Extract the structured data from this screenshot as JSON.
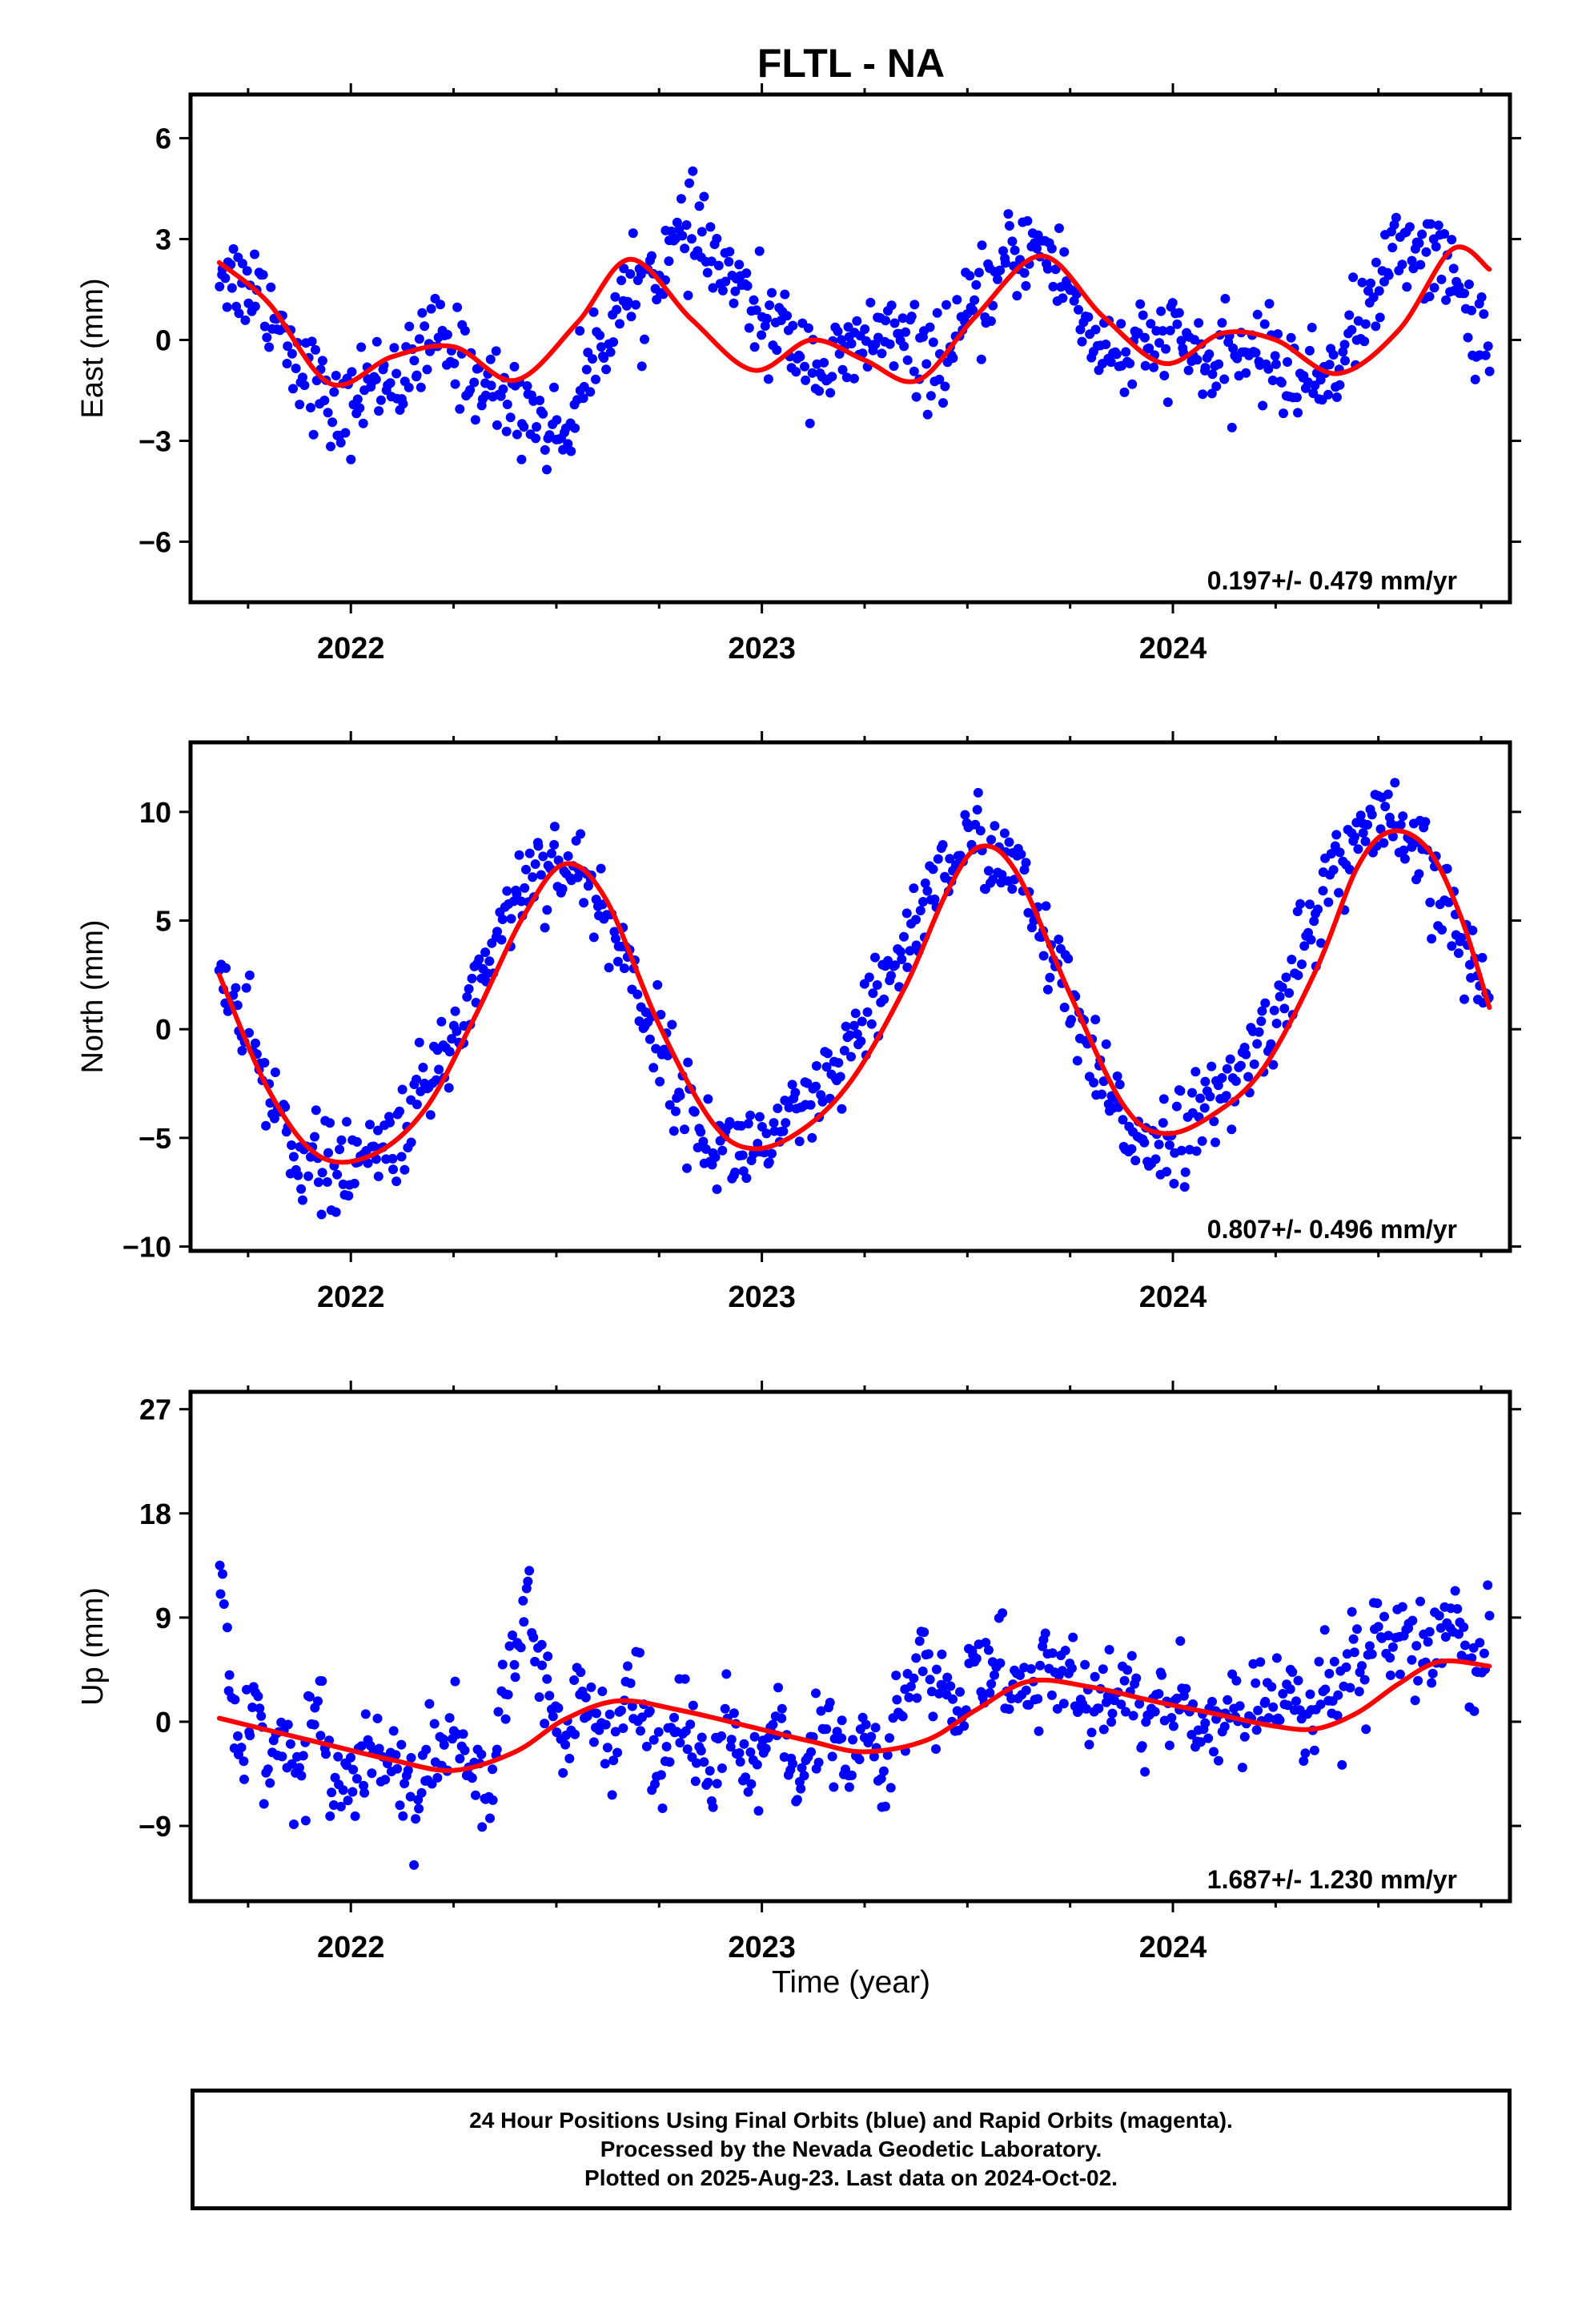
{
  "title": "FLTL - NA",
  "xlabel": "Time (year)",
  "footer": {
    "line1": "24 Hour Positions Using Final Orbits (blue) and Rapid Orbits (magenta).",
    "line2": "Processed by the Nevada Geodetic Laboratory.",
    "line3": "Plotted on 2025-Aug-23. Last data on 2024-Oct-02."
  },
  "colors": {
    "points": "#0000ff",
    "fit": "#ff0000",
    "frame": "#000000"
  },
  "chart_data": [
    {
      "type": "scatter",
      "ylabel": "East (mm)",
      "xlim": [
        2021.61,
        2024.82
      ],
      "ylim": [
        -7.8,
        7.3
      ],
      "yticks": [
        -6,
        -3,
        0,
        3,
        6
      ],
      "ytick_labels": [
        "−6",
        "−3",
        "0",
        "3",
        "6"
      ],
      "xticks": [
        2022,
        2023,
        2024
      ],
      "xtick_labels": [
        "2022",
        "2023",
        "2024"
      ],
      "rate_label": "0.197+/- 0.479 mm/yr",
      "grid": false,
      "series": [
        {
          "kind": "points",
          "x_start": 2021.68,
          "x_end": 2024.77,
          "values": [
            2.3,
            1.9,
            1.6,
            1.7,
            0.9,
            0.4,
            -0.6,
            -0.9,
            -1.7,
            -2.3,
            -2.2,
            -1.5,
            -1.3,
            -0.9,
            -1.2,
            -1.0,
            -0.4,
            0.2,
            -0.4,
            -0.6,
            -1.1,
            -1.6,
            -1.4,
            -2.1,
            -1.9,
            -2.3,
            -2.9,
            -2.6,
            -1.8,
            -0.6,
            0.2,
            0.9,
            1.3,
            1.6,
            2.1,
            2.6,
            2.9,
            3.2,
            2.6,
            2.2,
            1.8,
            1.1,
            0.8,
            0.4,
            0.2,
            -0.1,
            -0.5,
            -0.9,
            -0.8,
            -0.5,
            -0.4,
            0.2,
            0.3,
            -0.1,
            -0.4,
            -0.6,
            -0.5,
            -0.3,
            0.3,
            1.0,
            1.4,
            2.0,
            2.5,
            2.9,
            2.7,
            2.3,
            1.7,
            0.9,
            0.1,
            -0.2,
            -0.4,
            -0.6,
            -0.3,
            -0.2,
            0.1,
            -0.1,
            -0.4,
            -0.7,
            -0.9,
            -0.8,
            -0.3,
            -0.2,
            -0.6,
            -0.9,
            -1.1,
            -1.3,
            -1.1,
            -0.6,
            -0.1,
            0.6,
            1.3,
            2.1,
            2.7,
            2.9,
            2.6,
            2.4,
            1.9,
            1.1,
            0.4,
            0.0
          ]
        },
        {
          "kind": "fit",
          "x": [
            2021.68,
            2021.8,
            2021.95,
            2022.1,
            2022.25,
            2022.4,
            2022.55,
            2022.68,
            2022.83,
            2022.98,
            2023.12,
            2023.25,
            2023.38,
            2023.52,
            2023.68,
            2023.83,
            2023.98,
            2024.12,
            2024.25,
            2024.4,
            2024.55,
            2024.68,
            2024.77
          ],
          "y": [
            2.3,
            1.1,
            -1.3,
            -0.5,
            -0.2,
            -1.2,
            0.5,
            2.4,
            0.6,
            -0.9,
            0.0,
            -0.6,
            -1.2,
            0.7,
            2.5,
            0.7,
            -0.7,
            0.2,
            0.0,
            -1.0,
            0.3,
            2.7,
            2.1
          ]
        }
      ]
    },
    {
      "type": "scatter",
      "ylabel": "North (mm)",
      "xlim": [
        2021.61,
        2024.82
      ],
      "ylim": [
        -10.2,
        13.2
      ],
      "yticks": [
        -10,
        -5,
        0,
        5,
        10
      ],
      "ytick_labels": [
        "−10",
        "−5",
        "0",
        "5",
        "10"
      ],
      "xticks": [
        2022,
        2023,
        2024
      ],
      "xtick_labels": [
        "2022",
        "2023",
        "2024"
      ],
      "rate_label": "0.807+/- 0.496 mm/yr",
      "grid": false,
      "series": [
        {
          "kind": "points",
          "x_start": 2021.68,
          "x_end": 2024.77,
          "values": [
            2.4,
            0.2,
            -2.2,
            -4.3,
            -5.9,
            -6.4,
            -6.6,
            -6.1,
            -5.2,
            -4.1,
            -2.3,
            -0.6,
            1.8,
            4.1,
            6.1,
            7.6,
            7.8,
            7.1,
            5.7,
            3.8,
            1.2,
            -1.2,
            -3.5,
            -5.1,
            -5.6,
            -5.4,
            -5.1,
            -4.5,
            -3.6,
            -2.4,
            -0.8,
            1.0,
            3.2,
            5.2,
            7.0,
            8.3,
            8.7,
            8.0,
            6.4,
            4.1,
            1.5,
            -1.1,
            -3.3,
            -4.6,
            -5.1,
            -4.8,
            -4.3,
            -3.6,
            -2.4,
            -0.9,
            1.0,
            3.3,
            5.8,
            7.8,
            9.1,
            9.3,
            8.7,
            7.4,
            5.6,
            3.3,
            1.1
          ]
        },
        {
          "kind": "fit",
          "x": [
            2021.68,
            2021.8,
            2021.92,
            2022.05,
            2022.18,
            2022.3,
            2022.42,
            2022.52,
            2022.62,
            2022.75,
            2022.88,
            2022.98,
            2023.1,
            2023.22,
            2023.35,
            2023.45,
            2023.53,
            2023.62,
            2023.75,
            2023.88,
            2023.98,
            2024.1,
            2024.22,
            2024.35,
            2024.45,
            2024.53,
            2024.62,
            2024.7,
            2024.77
          ],
          "y": [
            2.5,
            -2.8,
            -5.8,
            -5.8,
            -3.7,
            0.5,
            5.2,
            7.6,
            6.0,
            0.2,
            -4.3,
            -5.5,
            -4.6,
            -2.3,
            2.0,
            6.3,
            8.4,
            7.2,
            1.6,
            -3.5,
            -4.8,
            -3.9,
            -1.8,
            2.8,
            7.5,
            9.1,
            8.3,
            5.2,
            1.0
          ]
        }
      ]
    },
    {
      "type": "scatter",
      "ylabel": "Up (mm)",
      "xlim": [
        2021.61,
        2024.82
      ],
      "ylim": [
        -15.5,
        28.5
      ],
      "yticks": [
        -9,
        0,
        9,
        18,
        27
      ],
      "ytick_labels": [
        "−9",
        "0",
        "9",
        "18",
        "27"
      ],
      "xticks": [
        2022,
        2023,
        2024
      ],
      "xtick_labels": [
        "2022",
        "2023",
        "2024"
      ],
      "rate_label": "1.687+/- 1.230 mm/yr",
      "grid": false,
      "series": [
        {
          "kind": "points",
          "x_start": 2021.68,
          "x_end": 2024.77,
          "values": [
            13.0,
            3.0,
            -2.0,
            1.0,
            -3.0,
            -1.0,
            -5.0,
            -2.0,
            2.0,
            -4.0,
            -3.0,
            -6.0,
            -1.0,
            -4.0,
            -2.0,
            -5.0,
            -7.0,
            -3.0,
            -4.0,
            0.0,
            -2.0,
            -6.0,
            -8.0,
            2.0,
            5.0,
            12.0,
            3.0,
            1.0,
            -3.0,
            2.0,
            4.0,
            0.0,
            -2.0,
            3.0,
            1.0,
            -1.0,
            -4.0,
            2.0,
            0.0,
            -3.0,
            -6.0,
            -1.0,
            -3.0,
            -5.0,
            -2.0,
            1.0,
            -4.0,
            -7.0,
            -3.0,
            0.0,
            -2.0,
            -5.0,
            -1.0,
            -3.0,
            -6.0,
            1.0,
            3.0,
            6.0,
            2.0,
            4.0,
            0.0,
            5.0,
            3.0,
            7.0,
            2.0,
            4.0,
            1.0,
            6.0,
            3.0,
            5.0,
            2.0,
            0.0,
            3.0,
            1.0,
            4.0,
            -1.0,
            2.0,
            0.0,
            3.0,
            -2.0,
            1.0,
            0.0,
            2.0,
            -1.0,
            1.0,
            3.0,
            0.0,
            2.0,
            -2.0,
            1.0,
            4.0,
            2.0,
            6.0,
            3.0,
            8.0,
            5.0,
            9.0,
            6.0,
            4.0,
            7.0,
            9.0,
            5.0,
            3.0,
            6.0
          ]
        },
        {
          "kind": "fit",
          "x": [
            2021.68,
            2021.9,
            2022.1,
            2022.25,
            2022.4,
            2022.52,
            2022.65,
            2022.8,
            2022.98,
            2023.12,
            2023.25,
            2023.4,
            2023.52,
            2023.65,
            2023.8,
            2023.95,
            2024.1,
            2024.25,
            2024.35,
            2024.45,
            2024.55,
            2024.65,
            2024.77
          ],
          "y": [
            0.3,
            -1.6,
            -3.3,
            -4.2,
            -2.6,
            0.2,
            1.8,
            1.0,
            -0.5,
            -1.7,
            -2.6,
            -1.6,
            1.0,
            3.5,
            3.0,
            1.8,
            0.7,
            -0.4,
            -0.6,
            0.8,
            3.3,
            5.2,
            4.8
          ]
        }
      ]
    }
  ]
}
